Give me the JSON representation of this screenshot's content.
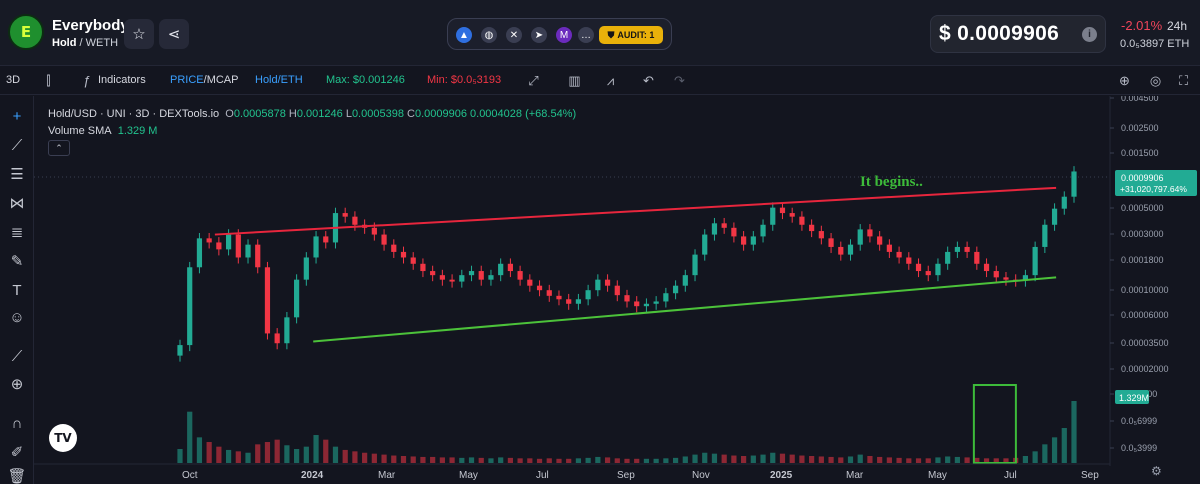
{
  "header": {
    "token_name": "Everybody",
    "token_symbol": "Hold",
    "quote_symbol": "WETH",
    "logo_letter": "E",
    "audit_label": "AUDIT: 1",
    "price": "$ 0.0009906",
    "change": "-2.01%",
    "change_period": "24h",
    "eth_price": "0.0₅3897",
    "eth_unit": "ETH",
    "icons": [
      "star-icon",
      "share-icon",
      "chart-icon",
      "globe-icon",
      "x-icon",
      "telegram-icon",
      "coin-icon",
      "more-icon",
      "shield-icon"
    ]
  },
  "toolbar": {
    "interval": "3D",
    "indicators_label": "Indicators",
    "price_label": "PRICE",
    "mcap_label": "MCAP",
    "pair_label": "Hold/ETH",
    "max_label": "Max: $0.001246",
    "min_label": "Min: $0.0₅3193",
    "icons": [
      "candle-type-icon",
      "function-icon",
      "expand-icon",
      "bar-chart-icon",
      "line-chart-icon",
      "undo-icon",
      "redo-icon",
      "zoom-icon",
      "camera-icon",
      "fullscreen-icon"
    ]
  },
  "legend": {
    "title": "Hold/USD · UNI · 3D · DEXTools.io",
    "o_label": "O",
    "o_value": "0.0005878",
    "h_label": "H",
    "h_value": "0.001246",
    "l_label": "L",
    "l_value": "0.0005398",
    "c_label": "C",
    "c_value": "0.0009906",
    "change_value": "0.0004028 (+68.54%)",
    "volume_label": "Volume SMA",
    "volume_value": "1.329 M"
  },
  "tools": [
    "crosshair-icon",
    "trendline-icon",
    "horizontal-lines-icon",
    "pattern-icon",
    "fib-icon",
    "brush-icon",
    "text-icon",
    "emoji-icon",
    "ruler-icon",
    "zoom-in-icon",
    "magnet-icon",
    "lock-edit-icon",
    "trash-icon"
  ],
  "chart_data": {
    "type": "candlestick",
    "y_scale": "log",
    "x_ticks": [
      "Oct",
      "2024",
      "Mar",
      "May",
      "Jul",
      "Sep",
      "Nov",
      "2025",
      "Mar",
      "May",
      "Jul",
      "Sep"
    ],
    "y_ticks": [
      "0.004500",
      "0.002500",
      "0.001500",
      "0.0005000",
      "0.0003000",
      "0.0001800",
      "0.00010000",
      "0.00006000",
      "0.00003500",
      "0.00002000",
      "0.0₄1200",
      "0.0₅6999",
      "0.0₅3999"
    ],
    "annotation": "It begins..",
    "last_price_label": "0.0009906",
    "last_change_label": "+31,020,797.64%",
    "volume_label": "1.329M",
    "colors": {
      "up": "#22ab94",
      "down": "#f23645",
      "resistance": "#e8263d",
      "support": "#4cc23a",
      "highlight": "#3dbb3a"
    },
    "closes": [
      2.5e-05,
      0.00013,
      0.00024,
      0.00022,
      0.00019,
      0.00026,
      0.00016,
      0.00021,
      0.00013,
      3.2e-05,
      2.6e-05,
      4.5e-05,
      0.0001,
      0.00016,
      0.00025,
      0.00022,
      0.00041,
      0.00038,
      0.00032,
      0.0003,
      0.00026,
      0.00021,
      0.00018,
      0.00016,
      0.00014,
      0.00012,
      0.00011,
      0.0001,
      9.6e-05,
      0.00011,
      0.00012,
      0.0001,
      0.00011,
      0.00014,
      0.00012,
      0.0001,
      8.8e-05,
      8e-05,
      7.1e-05,
      6.6e-05,
      6e-05,
      6.6e-05,
      8e-05,
      0.0001,
      8.8e-05,
      7.2e-05,
      6.3e-05,
      5.7e-05,
      6e-05,
      6.3e-05,
      7.5e-05,
      8.8e-05,
      0.00011,
      0.00017,
      0.00026,
      0.00033,
      0.0003,
      0.00025,
      0.00021,
      0.00025,
      0.00032,
      0.00046,
      0.00041,
      0.00038,
      0.00032,
      0.00028,
      0.00024,
      0.0002,
      0.00017,
      0.00021,
      0.00029,
      0.00025,
      0.00021,
      0.00018,
      0.00016,
      0.00014,
      0.00012,
      0.00011,
      0.00014,
      0.00018,
      0.0002,
      0.00018,
      0.00014,
      0.00012,
      0.000105,
      0.0001,
      9.8e-05,
      0.00011,
      0.0002,
      0.00032,
      0.00045,
      0.00058,
      0.00099
    ],
    "volumes": [
      0.3,
      1.1,
      0.55,
      0.45,
      0.35,
      0.28,
      0.25,
      0.22,
      0.4,
      0.45,
      0.5,
      0.38,
      0.3,
      0.35,
      0.6,
      0.5,
      0.35,
      0.28,
      0.25,
      0.22,
      0.2,
      0.18,
      0.16,
      0.15,
      0.14,
      0.13,
      0.13,
      0.12,
      0.12,
      0.11,
      0.12,
      0.11,
      0.1,
      0.12,
      0.11,
      0.1,
      0.1,
      0.09,
      0.1,
      0.09,
      0.09,
      0.1,
      0.11,
      0.13,
      0.12,
      0.1,
      0.09,
      0.09,
      0.09,
      0.09,
      0.1,
      0.11,
      0.14,
      0.18,
      0.22,
      0.2,
      0.18,
      0.16,
      0.15,
      0.16,
      0.18,
      0.22,
      0.2,
      0.18,
      0.16,
      0.15,
      0.14,
      0.13,
      0.12,
      0.14,
      0.18,
      0.15,
      0.13,
      0.12,
      0.11,
      0.1,
      0.1,
      0.1,
      0.12,
      0.14,
      0.13,
      0.12,
      0.11,
      0.1,
      0.1,
      0.1,
      0.11,
      0.15,
      0.25,
      0.4,
      0.55,
      0.75,
      1.329
    ],
    "resistance": {
      "from": [
        0.039,
        0.00026
      ],
      "to": [
        0.98,
        0.0007
      ]
    },
    "support": {
      "from": [
        0.149,
        2.7e-05
      ],
      "to": [
        0.98,
        0.000105
      ]
    },
    "highlight_box": {
      "from_fraction": 0.888,
      "to_fraction": 0.935
    }
  }
}
